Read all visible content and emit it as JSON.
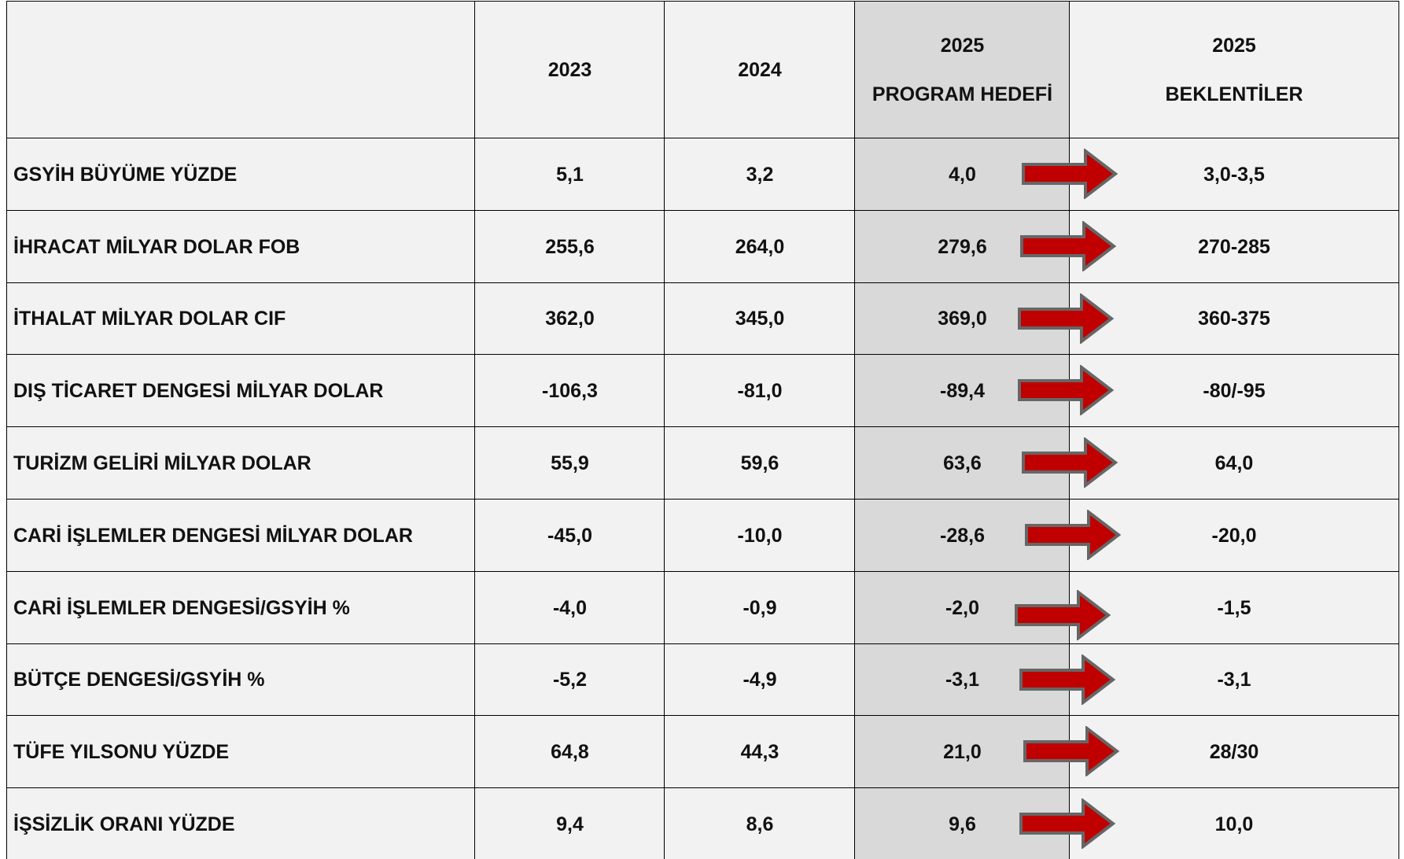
{
  "table": {
    "header": [
      [
        "2023"
      ],
      [
        "2024"
      ],
      [
        "2025",
        "PROGRAM HEDEFİ"
      ],
      [
        "2025",
        "BEKLENTİLER"
      ]
    ],
    "rows": [
      {
        "label": "GSYİH BÜYÜME YÜZDE",
        "cells": [
          "5,1",
          "3,2",
          "4,0",
          "3,0-3,5"
        ]
      },
      {
        "label": "İHRACAT MİLYAR DOLAR FOB",
        "cells": [
          "255,6",
          "264,0",
          "279,6",
          "270-285"
        ]
      },
      {
        "label": "İTHALAT MİLYAR DOLAR CIF",
        "cells": [
          "362,0",
          "345,0",
          "369,0",
          "360-375"
        ]
      },
      {
        "label": "DIŞ TİCARET DENGESİ MİLYAR DOLAR",
        "cells": [
          "-106,3",
          "-81,0",
          "-89,4",
          "-80/-95"
        ]
      },
      {
        "label": "TURİZM GELİRİ MİLYAR DOLAR",
        "cells": [
          "55,9",
          "59,6",
          "63,6",
          "64,0"
        ]
      },
      {
        "label": "CARİ İŞLEMLER DENGESİ MİLYAR DOLAR",
        "cells": [
          "-45,0",
          "-10,0",
          "-28,6",
          "-20,0"
        ]
      },
      {
        "label": "CARİ İŞLEMLER DENGESİ/GSYİH %",
        "cells": [
          "-4,0",
          "-0,9",
          "-2,0",
          "-1,5"
        ]
      },
      {
        "label": "BÜTÇE DENGESİ/GSYİH %",
        "cells": [
          "-5,2",
          "-4,9",
          "-3,1",
          "-3,1"
        ]
      },
      {
        "label": "TÜFE YILSONU YÜZDE",
        "cells": [
          "64,8",
          "44,3",
          "21,0",
          "28/30"
        ]
      },
      {
        "label": "İŞSİZLİK ORANI YÜZDE",
        "cells": [
          "9,4",
          "8,6",
          "9,6",
          "10,0"
        ]
      }
    ]
  }
}
